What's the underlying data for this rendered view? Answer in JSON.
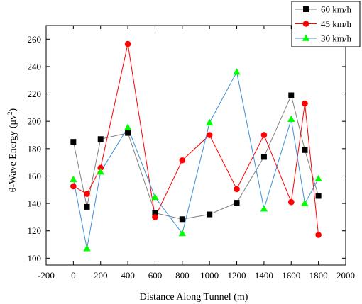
{
  "chart_data": {
    "type": "line",
    "xlabel": "Distance Along Tunnel (m)",
    "ylabel_prefix": "θ-Wave Energy (μv",
    "ylabel_sup": "2",
    "ylabel_suffix": ")",
    "xlim": [
      -200,
      2000
    ],
    "ylim": [
      95,
      270
    ],
    "xticks": [
      -200,
      0,
      200,
      400,
      600,
      800,
      1000,
      1200,
      1400,
      1600,
      1800,
      2000
    ],
    "yticks": [
      100,
      120,
      140,
      160,
      180,
      200,
      220,
      240,
      260
    ],
    "grid": false,
    "legend_position": "top-right",
    "series": [
      {
        "name": "60 km/h",
        "marker": "square",
        "marker_color": "#000000",
        "line_color": "#7f7f7f",
        "x": [
          0,
          100,
          200,
          400,
          600,
          800,
          1000,
          1200,
          1400,
          1600,
          1700,
          1800
        ],
        "y": [
          185,
          137.5,
          187,
          191.5,
          133,
          128.5,
          132,
          140.5,
          174,
          219,
          179,
          145.5
        ]
      },
      {
        "name": "45 km/h",
        "marker": "circle",
        "marker_color": "#ff0000",
        "line_color": "#ff0000",
        "x": [
          0,
          100,
          200,
          400,
          600,
          800,
          1000,
          1200,
          1400,
          1600,
          1700,
          1800
        ],
        "y": [
          152.5,
          147,
          166,
          256.5,
          130,
          171.5,
          190,
          150.5,
          190,
          141,
          213,
          117
        ]
      },
      {
        "name": "30 km/h",
        "marker": "triangle",
        "marker_color": "#00ff00",
        "line_color": "#3f8fd6",
        "x": [
          0,
          100,
          200,
          400,
          600,
          800,
          1000,
          1200,
          1400,
          1600,
          1700,
          1800
        ],
        "y": [
          157.5,
          107,
          163,
          195.5,
          144.5,
          118,
          199,
          236,
          136,
          201.5,
          140,
          158
        ]
      }
    ]
  }
}
